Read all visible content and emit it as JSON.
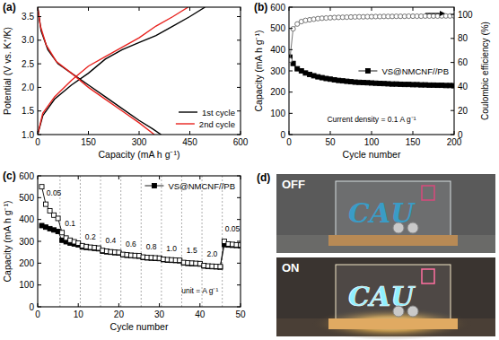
{
  "chart_data": [
    {
      "type": "line",
      "title": "(a)",
      "x_label": "Capacity (mA h g⁻¹)",
      "y_label": "Potential (V vs. K⁺/K)",
      "xlim": [
        0,
        600
      ],
      "xticks": [
        0,
        150,
        300,
        450,
        600
      ],
      "ylim": [
        1.0,
        3.7
      ],
      "yticks": [
        {
          "value": 1,
          "label": "1.0"
        },
        1.5,
        {
          "value": 2,
          "label": "2.0"
        },
        2.5,
        {
          "value": 3,
          "label": "3.0"
        },
        3.5
      ],
      "grid": false,
      "legend": "lower right",
      "series": [
        {
          "name": "1st cycle",
          "color": "#000000",
          "line_style": "solid",
          "x": [
            0,
            10,
            30,
            60,
            100,
            150,
            200,
            250,
            300,
            340,
            365,
            null,
            0,
            15,
            50,
            100,
            150,
            200,
            250,
            300,
            350,
            400,
            450,
            495
          ],
          "values": [
            3.7,
            3.2,
            2.8,
            2.5,
            2.3,
            2.05,
            1.8,
            1.55,
            1.3,
            1.12,
            1.0,
            null,
            1.0,
            1.4,
            1.75,
            2.05,
            2.3,
            2.6,
            2.8,
            2.95,
            3.1,
            3.3,
            3.5,
            3.7
          ]
        },
        {
          "name": "2nd cycle",
          "color": "#e8221e",
          "line_style": "solid",
          "x": [
            0,
            8,
            25,
            55,
            100,
            150,
            200,
            250,
            300,
            345,
            null,
            0,
            15,
            50,
            100,
            150,
            200,
            250,
            300,
            350,
            400,
            445
          ],
          "values": [
            3.7,
            3.3,
            2.9,
            2.55,
            2.3,
            2.0,
            1.75,
            1.5,
            1.25,
            1.0,
            null,
            1.0,
            1.45,
            1.8,
            2.15,
            2.45,
            2.65,
            2.85,
            3.05,
            3.3,
            3.5,
            3.7
          ]
        }
      ]
    },
    {
      "type": "line",
      "title": "(b)",
      "x_label": "Cycle number",
      "y_label": "Capacity (mA h g⁻¹)",
      "y2_label": "Coulombic efficiency (%)",
      "xlim": [
        0,
        200
      ],
      "xticks": [
        0,
        50,
        100,
        150,
        200
      ],
      "ylim": [
        0,
        600
      ],
      "yticks": [
        0,
        100,
        200,
        300,
        400,
        500,
        600
      ],
      "y2lim": [
        0,
        106
      ],
      "y2ticks": [
        0,
        20,
        40,
        60,
        80,
        100
      ],
      "grid": false,
      "legend": "center right",
      "annotations": [
        {
          "text": "Current density = 0.1 A g⁻¹",
          "x": 100,
          "y": 60
        }
      ],
      "x": [
        1,
        5,
        10,
        15,
        20,
        25,
        30,
        35,
        40,
        45,
        50,
        55,
        60,
        65,
        70,
        75,
        80,
        85,
        90,
        95,
        100,
        105,
        110,
        115,
        120,
        125,
        130,
        135,
        140,
        145,
        150,
        155,
        160,
        165,
        170,
        175,
        180,
        185,
        190,
        195,
        200
      ],
      "series": [
        {
          "name": "VS@NMCNF//PB",
          "color": "#000000",
          "marker": "square",
          "line_style": "solid",
          "values": [
            365,
            335,
            310,
            300,
            290,
            283,
            277,
            272,
            268,
            264,
            261,
            258,
            255,
            253,
            251,
            249,
            247,
            246,
            245,
            244,
            243,
            242,
            241,
            240,
            239,
            238,
            238,
            237,
            236,
            236,
            235,
            235,
            234,
            234,
            233,
            233,
            232,
            232,
            231,
            231,
            230
          ]
        },
        {
          "color": "#666666",
          "marker": "circle-open",
          "line_style": "solid",
          "axis": "y2",
          "values": [
            62,
            88,
            92,
            94,
            95,
            95.5,
            96,
            96.5,
            96.8,
            97,
            97.2,
            97.4,
            97.5,
            97.6,
            97.7,
            97.8,
            97.9,
            98,
            98,
            98.1,
            98.1,
            98.2,
            98.2,
            98.3,
            98.3,
            98.3,
            98.4,
            98.4,
            98.4,
            98.5,
            98.5,
            98.5,
            98.5,
            98.6,
            98.6,
            98.6,
            98.6,
            98.7,
            98.7,
            98.7,
            98.7
          ]
        }
      ]
    },
    {
      "type": "line",
      "title": "(c)",
      "x_label": "Cycle number",
      "y_label": "Capacity (mA h g⁻¹)",
      "xlim": [
        0,
        50
      ],
      "xticks": [
        0,
        10,
        20,
        30,
        40,
        50
      ],
      "ylim": [
        0,
        600
      ],
      "yticks": [
        0,
        100,
        200,
        300,
        400,
        500,
        600
      ],
      "grid": false,
      "legend": "upper right",
      "dividers": [
        5.5,
        10.5,
        15.5,
        20.5,
        25.5,
        30.5,
        35.5,
        40.5,
        45.5
      ],
      "annotations": [
        {
          "text": "0.05",
          "x": 4,
          "y": 510
        },
        {
          "text": "0.1",
          "x": 8,
          "y": 370
        },
        {
          "text": "0.2",
          "x": 13,
          "y": 310
        },
        {
          "text": "0.4",
          "x": 18,
          "y": 290
        },
        {
          "text": "0.6",
          "x": 23,
          "y": 275
        },
        {
          "text": "0.8",
          "x": 28,
          "y": 265
        },
        {
          "text": "1.0",
          "x": 33,
          "y": 255
        },
        {
          "text": "1.5",
          "x": 38,
          "y": 245
        },
        {
          "text": "2.0",
          "x": 43,
          "y": 230
        },
        {
          "text": "0.05",
          "x": 48,
          "y": 345
        },
        {
          "text": "unit = A g⁻¹",
          "x": 40,
          "y": 60
        }
      ],
      "x": [
        1,
        2,
        3,
        4,
        5,
        6,
        7,
        8,
        9,
        10,
        11,
        12,
        13,
        14,
        15,
        16,
        17,
        18,
        19,
        20,
        21,
        22,
        23,
        24,
        25,
        26,
        27,
        28,
        29,
        30,
        31,
        32,
        33,
        34,
        35,
        36,
        37,
        38,
        39,
        40,
        41,
        42,
        43,
        44,
        45,
        46,
        47,
        48,
        49,
        50
      ],
      "series": [
        {
          "name": "VS@NMCNF//PB",
          "color": "#000000",
          "marker": "square",
          "line_style": "solid",
          "values": [
            372,
            365,
            358,
            352,
            345,
            305,
            298,
            292,
            288,
            284,
            274,
            272,
            270,
            268,
            266,
            255,
            252,
            250,
            248,
            247,
            238,
            236,
            235,
            233,
            232,
            226,
            224,
            223,
            222,
            221,
            216,
            214,
            213,
            212,
            211,
            201,
            199,
            198,
            197,
            196,
            187,
            185,
            184,
            183,
            182,
            285,
            283,
            282,
            281,
            280
          ]
        },
        {
          "color": "#000000",
          "marker": "square-open",
          "line_style": "solid",
          "values": [
            550,
            470,
            440,
            420,
            405,
            340,
            315,
            305,
            298,
            292,
            280,
            276,
            273,
            271,
            269,
            258,
            255,
            252,
            250,
            249,
            240,
            238,
            236,
            235,
            234,
            228,
            226,
            225,
            224,
            223,
            218,
            216,
            215,
            214,
            213,
            203,
            201,
            200,
            199,
            198,
            189,
            187,
            186,
            185,
            184,
            300,
            288,
            286,
            284,
            283
          ]
        }
      ]
    }
  ],
  "panel_d": {
    "label": "(d)",
    "photos": [
      {
        "state": "OFF",
        "sign": "CAU"
      },
      {
        "state": "ON",
        "sign": "CAU"
      }
    ]
  }
}
